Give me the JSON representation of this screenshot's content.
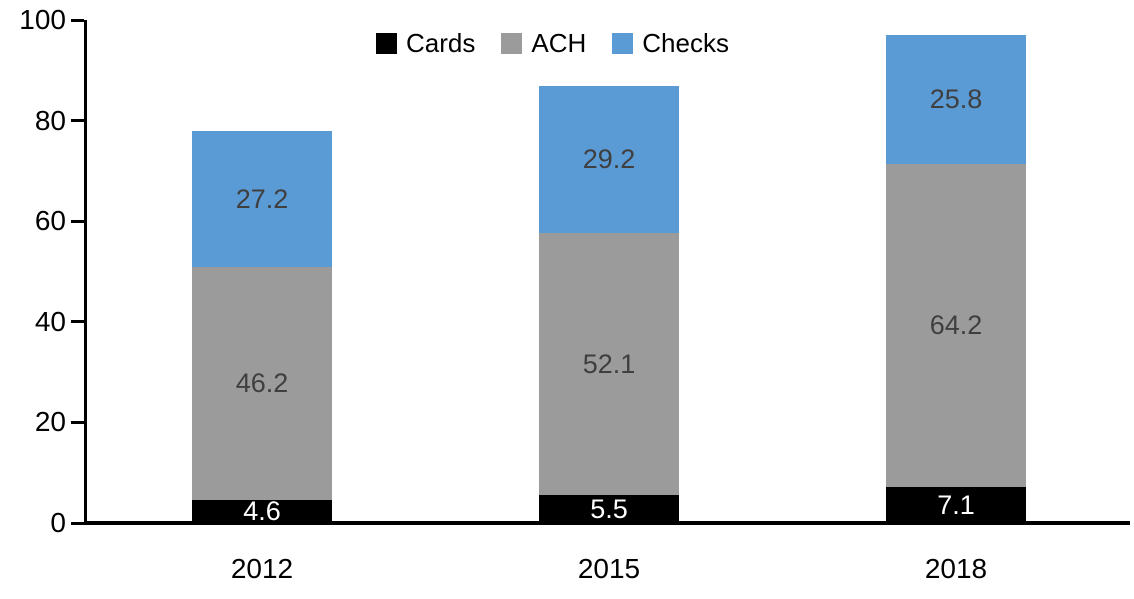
{
  "chart_data": {
    "type": "bar",
    "stacked": true,
    "title": "",
    "xlabel": "",
    "ylabel": "",
    "categories": [
      "2012",
      "2015",
      "2018"
    ],
    "series": [
      {
        "name": "Cards",
        "color": "#000000",
        "label_color": "#ffffff",
        "values": [
          4.6,
          5.5,
          7.1
        ]
      },
      {
        "name": "ACH",
        "color": "#9b9b9b",
        "label_color": "#3f3f3f",
        "values": [
          46.2,
          52.1,
          64.2
        ]
      },
      {
        "name": "Checks",
        "color": "#5b9bd5",
        "label_color": "#3f3f3f",
        "values": [
          27.2,
          29.2,
          25.8
        ]
      }
    ],
    "data_labels_visible": true,
    "y_axis": {
      "min": 0,
      "max": 100,
      "tick_labels": [
        "0",
        "20",
        "40",
        "60",
        "80",
        "100"
      ],
      "tick_values": [
        0,
        20,
        40,
        60,
        80,
        100
      ]
    },
    "legend": {
      "position": "top-center",
      "entries": [
        "Cards",
        "ACH",
        "Checks"
      ]
    },
    "grid": false,
    "axis_color": "#000000",
    "background_color": "#ffffff"
  }
}
